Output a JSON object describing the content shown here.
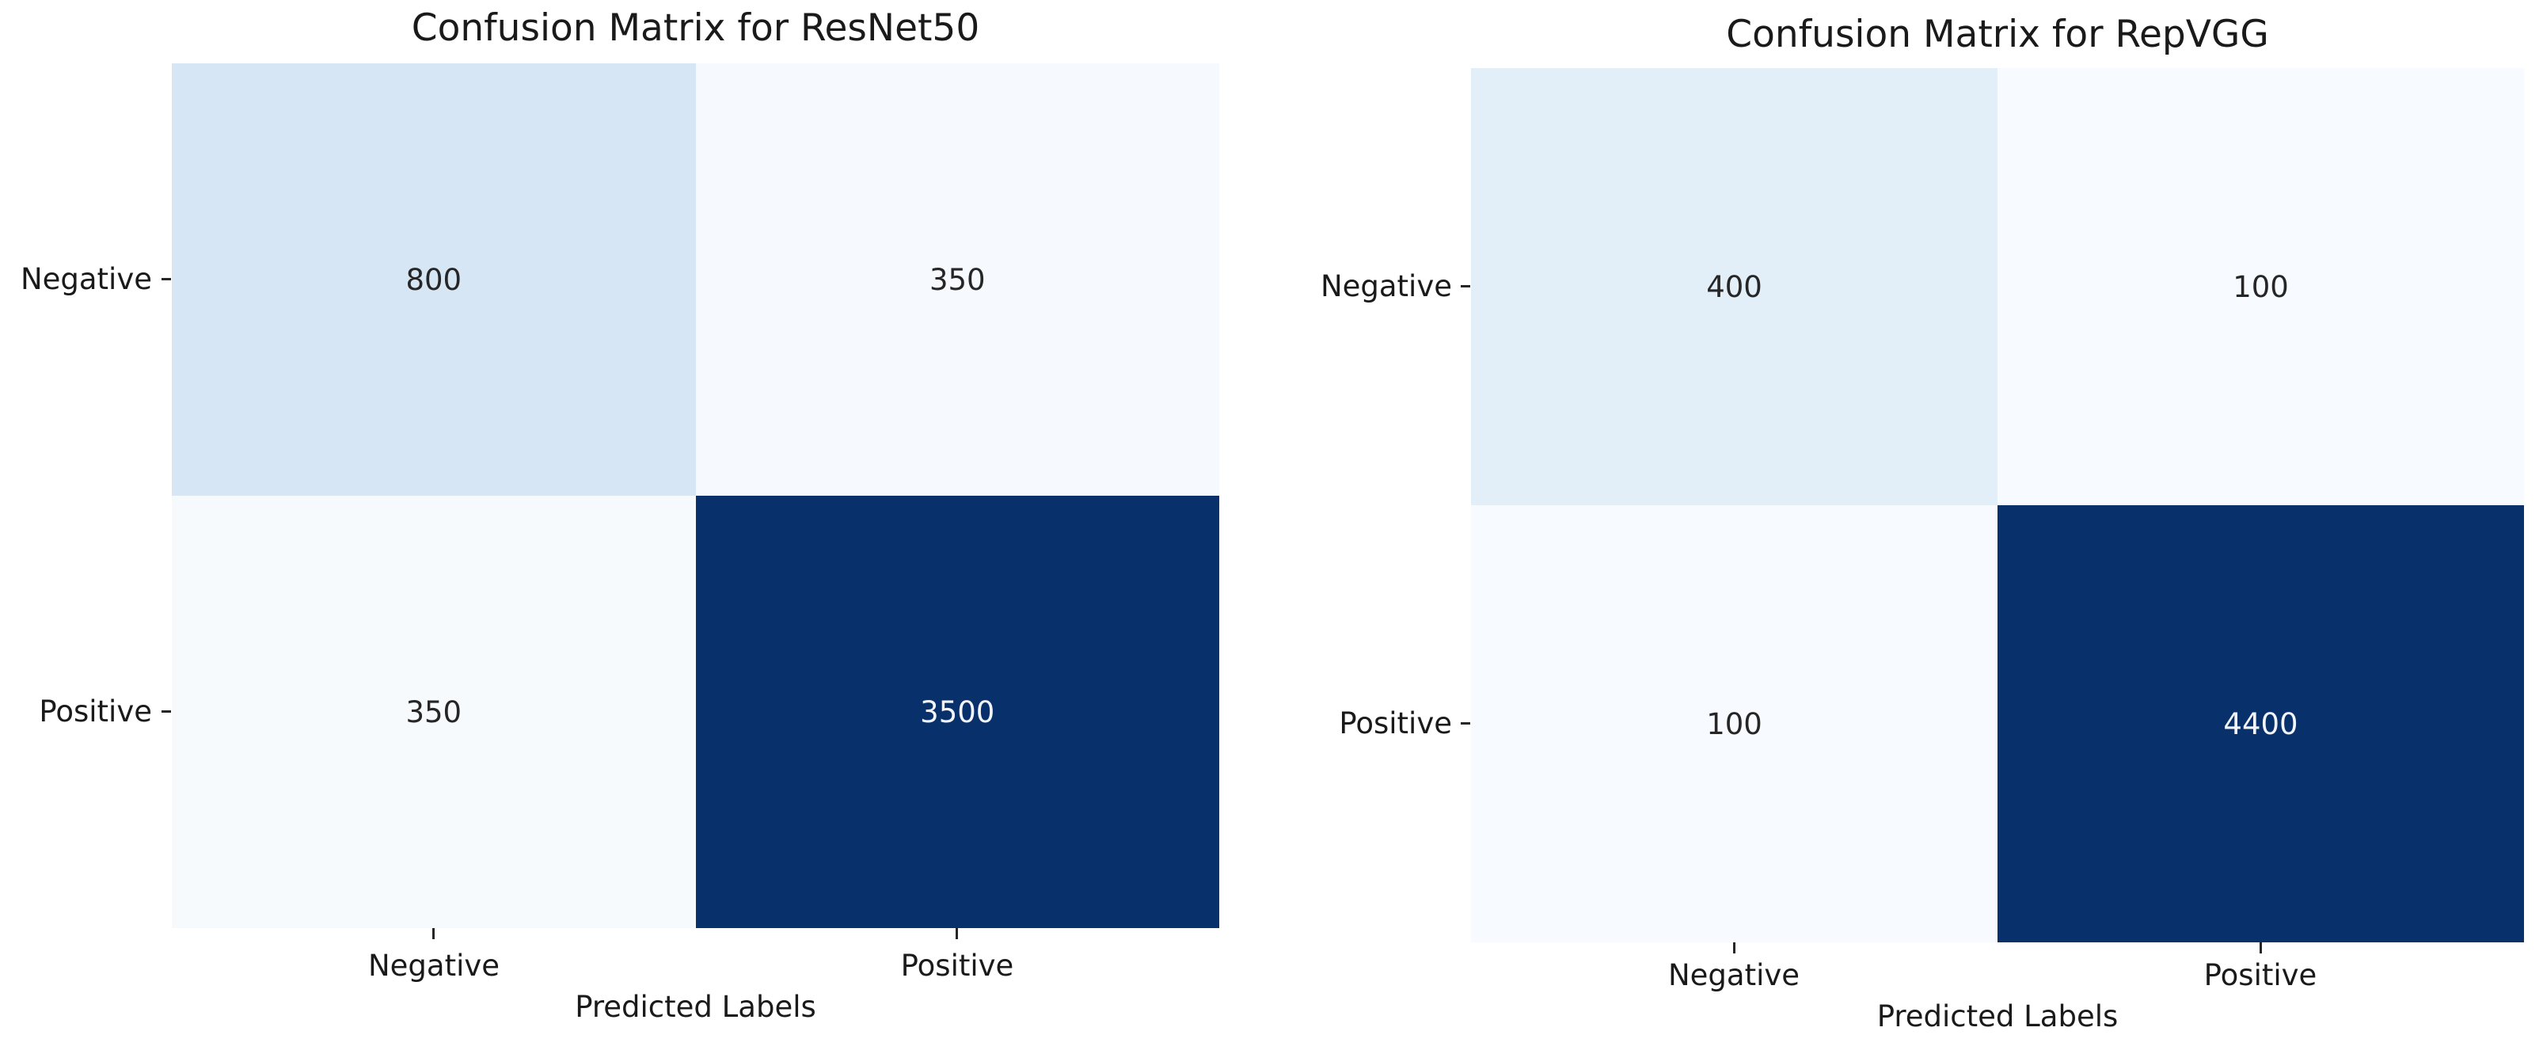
{
  "figures": [
    {
      "title": "Confusion Matrix for ResNet50",
      "xlabel": "Predicted Labels",
      "y_tick_labels": [
        "Negative",
        "Positive"
      ],
      "x_tick_labels": [
        "Negative",
        "Positive"
      ],
      "cells": [
        {
          "value": "800",
          "bg": "#d6e6f4",
          "fg": "#262626"
        },
        {
          "value": "350",
          "bg": "#f6fafe",
          "fg": "#262626"
        },
        {
          "value": "350",
          "bg": "#f6fafd",
          "fg": "#262626"
        },
        {
          "value": "3500",
          "bg": "#08306b",
          "fg": "#f2f5fa"
        }
      ]
    },
    {
      "title": "Confusion Matrix for RepVGG",
      "xlabel": "Predicted Labels",
      "y_tick_labels": [
        "Negative",
        "Positive"
      ],
      "x_tick_labels": [
        "Negative",
        "Positive"
      ],
      "cells": [
        {
          "value": "400",
          "bg": "#e2eef8",
          "fg": "#262626"
        },
        {
          "value": "100",
          "bg": "#f7fbff",
          "fg": "#262626"
        },
        {
          "value": "100",
          "bg": "#f7fbff",
          "fg": "#262626"
        },
        {
          "value": "4400",
          "bg": "#08306b",
          "fg": "#f2f5fa"
        }
      ]
    }
  ],
  "chart_data": [
    {
      "type": "heatmap",
      "title": "Confusion Matrix for ResNet50",
      "xlabel": "Predicted Labels",
      "ylabel": "",
      "x_categories": [
        "Negative",
        "Positive"
      ],
      "y_categories": [
        "Negative",
        "Positive"
      ],
      "values": [
        [
          800,
          350
        ],
        [
          350,
          3500
        ]
      ],
      "annotations": [
        [
          "800",
          "350"
        ],
        [
          "350",
          "3500"
        ]
      ],
      "colormap": "Blues",
      "value_range": [
        350,
        3500
      ],
      "colorbar": false,
      "grid": false,
      "legend": false
    },
    {
      "type": "heatmap",
      "title": "Confusion Matrix for RepVGG",
      "xlabel": "Predicted Labels",
      "ylabel": "",
      "x_categories": [
        "Negative",
        "Positive"
      ],
      "y_categories": [
        "Negative",
        "Positive"
      ],
      "values": [
        [
          400,
          100
        ],
        [
          100,
          4400
        ]
      ],
      "annotations": [
        [
          "400",
          "100"
        ],
        [
          "100",
          "4400"
        ]
      ],
      "colormap": "Blues",
      "value_range": [
        100,
        4400
      ],
      "colorbar": false,
      "grid": false,
      "legend": false
    }
  ]
}
